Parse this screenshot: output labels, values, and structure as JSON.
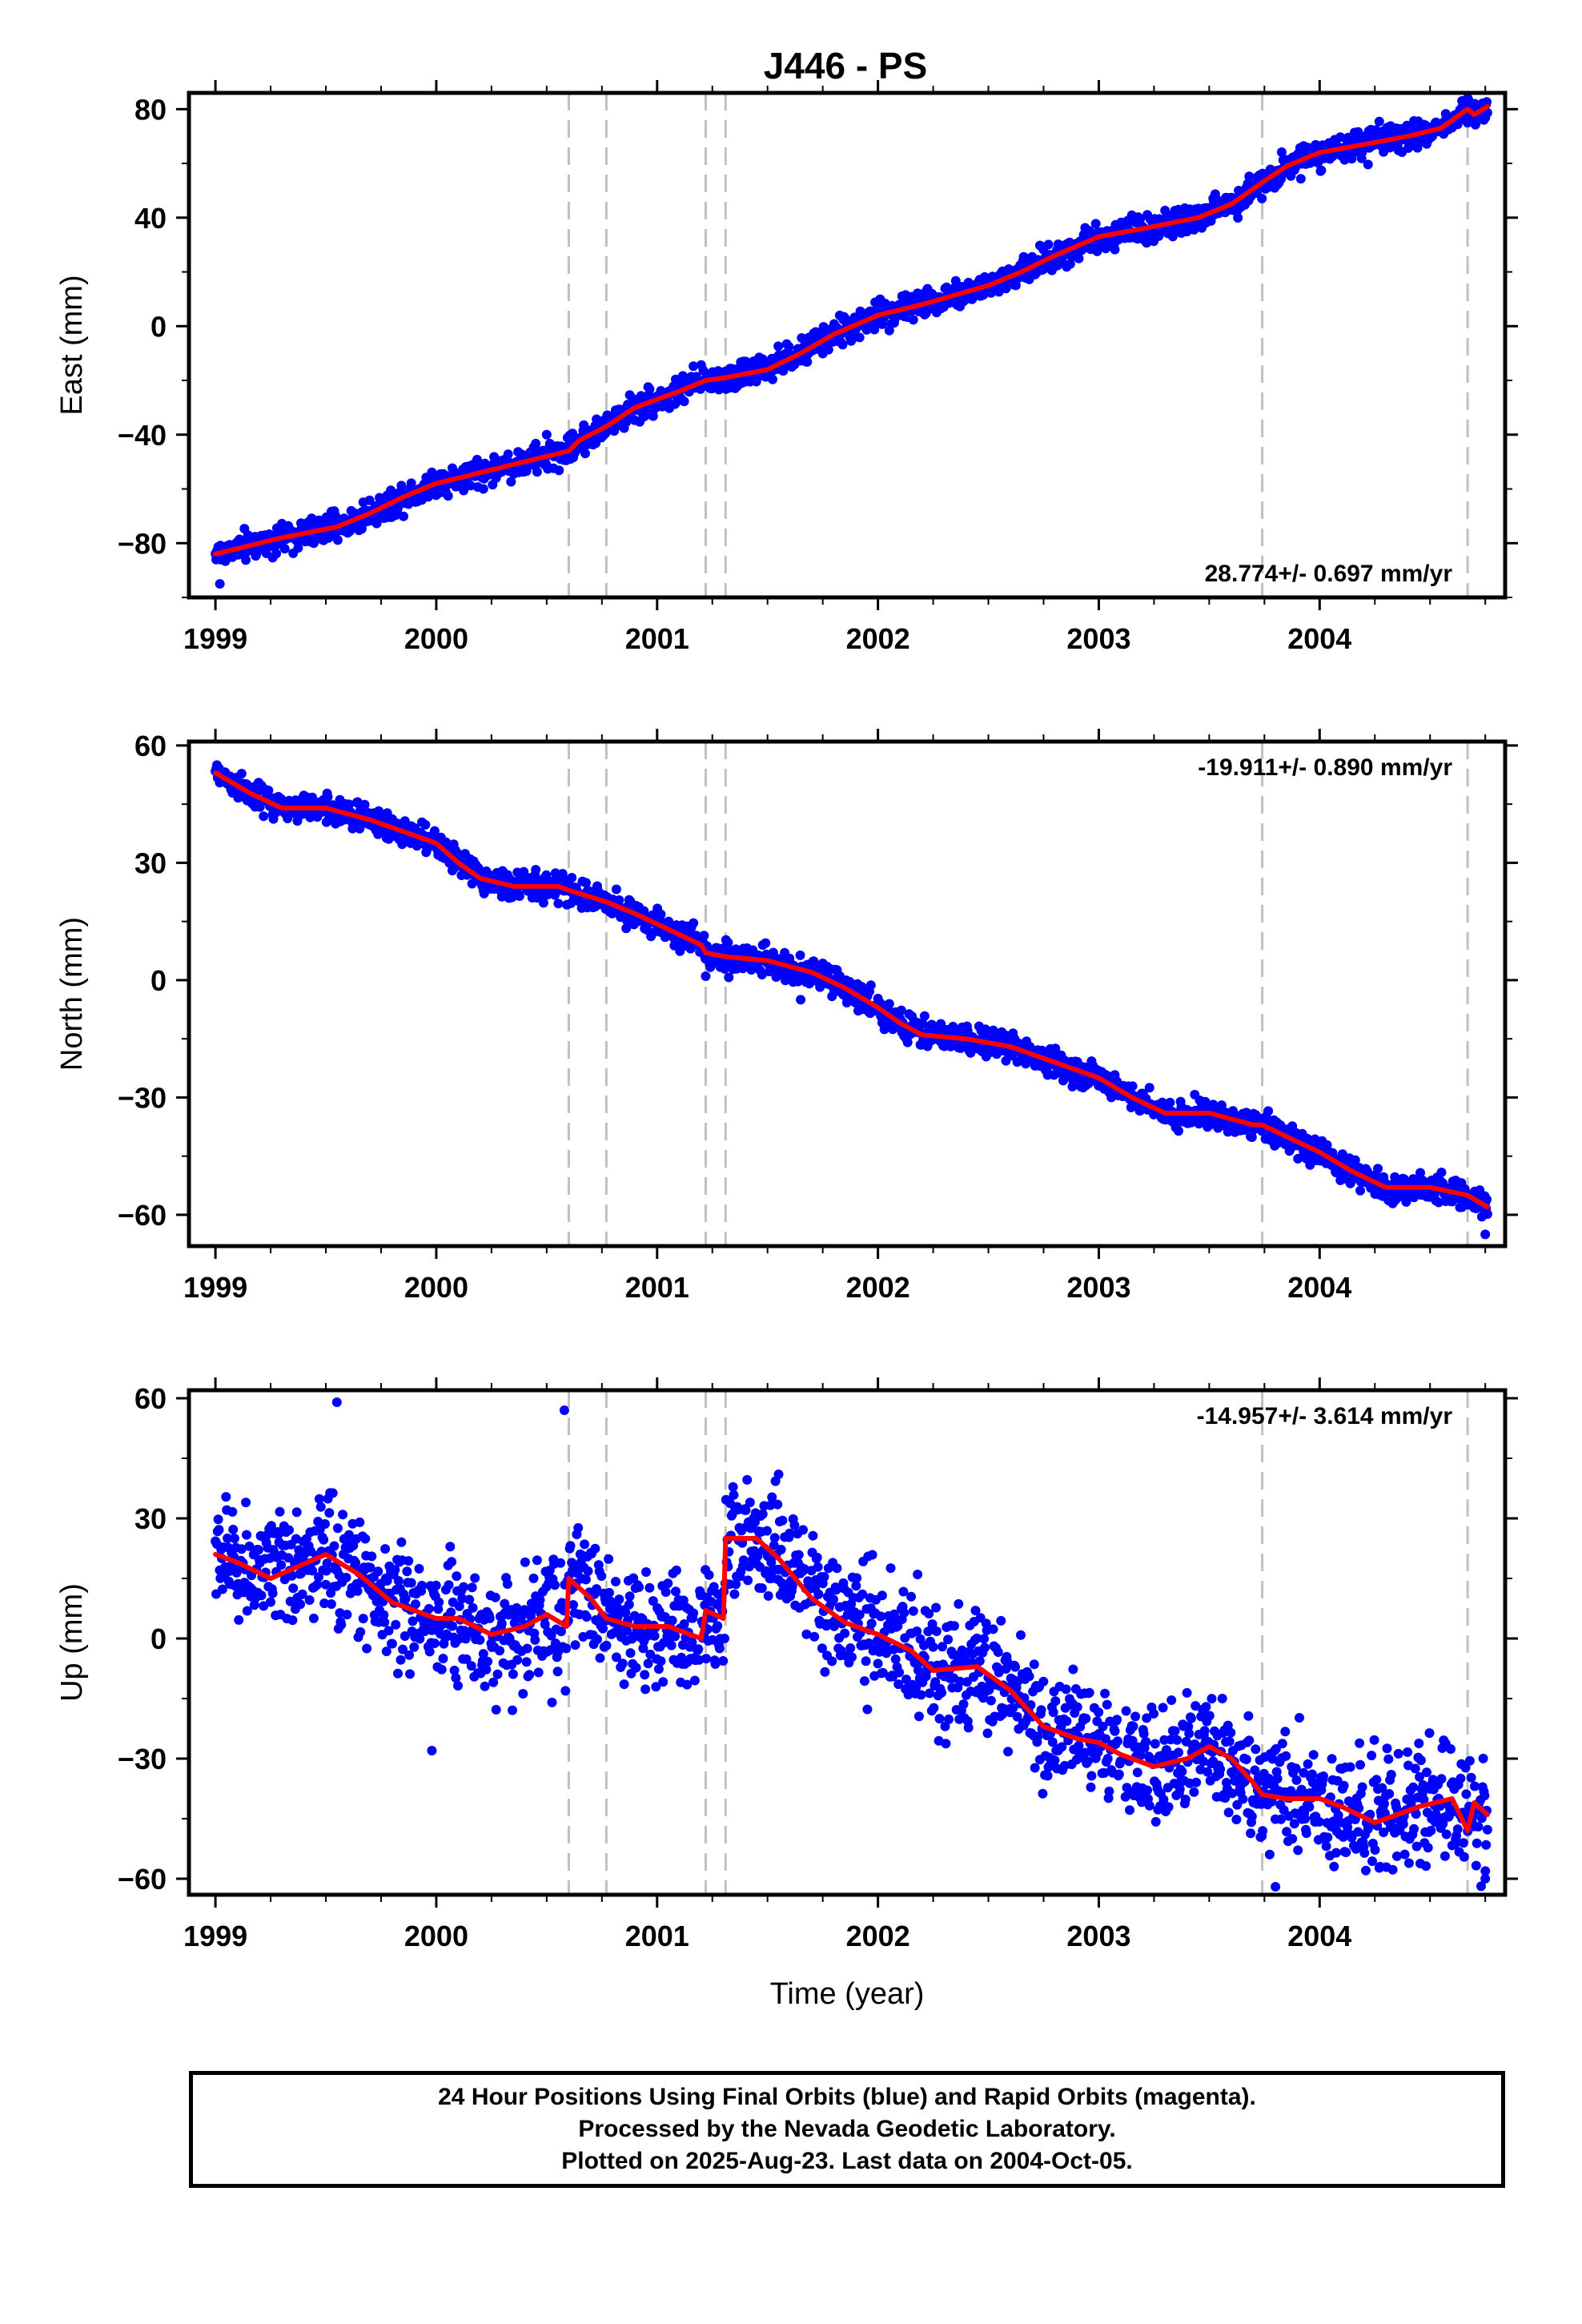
{
  "figure": {
    "title": "J446 - PS",
    "footer": [
      "24 Hour Positions Using Final Orbits (blue) and Rapid Orbits (magenta).",
      "Processed by the Nevada Geodetic Laboratory.",
      "Plotted on 2025-Aug-23. Last data on 2004-Oct-05."
    ]
  },
  "colors": {
    "points": "#0000ff",
    "fit": "#ff0000",
    "event_lines": "#c0c0c0",
    "axes": "#000000"
  },
  "chart_data": [
    {
      "type": "scatter",
      "title": "J446 - PS",
      "ylabel": "East (mm)",
      "xlabel": "",
      "xlim": [
        1998.88,
        2004.84
      ],
      "ylim": [
        -100,
        86
      ],
      "xticks": [
        1999,
        2000,
        2001,
        2002,
        2003,
        2004
      ],
      "yticks": [
        -80,
        -40,
        0,
        40,
        80
      ],
      "grid": false,
      "rate_label": "28.774+/- 0.697 mm/yr",
      "rate_position": "bottom-right",
      "event_lines_x": [
        2000.6,
        2000.77,
        2001.22,
        2001.31,
        2003.74,
        2004.67
      ],
      "data_range_x": [
        1999.0,
        2004.76
      ],
      "scatter_sigma": 2.6,
      "fit": {
        "x": [
          1999.0,
          1999.1,
          1999.3,
          1999.55,
          1999.7,
          1999.85,
          2000.0,
          2000.2,
          2000.4,
          2000.55,
          2000.6,
          2000.65,
          2000.77,
          2000.9,
          2001.1,
          2001.22,
          2001.31,
          2001.5,
          2001.65,
          2001.8,
          2002.0,
          2002.2,
          2002.5,
          2002.65,
          2002.8,
          2003.0,
          2003.2,
          2003.45,
          2003.6,
          2003.74,
          2003.85,
          2004.0,
          2004.2,
          2004.4,
          2004.55,
          2004.67,
          2004.7,
          2004.76
        ],
        "y": [
          -84,
          -82,
          -78,
          -74,
          -69,
          -63,
          -58,
          -54,
          -50,
          -47,
          -46,
          -42,
          -37,
          -30,
          -24,
          -20,
          -19,
          -16,
          -10,
          -3,
          4,
          8,
          15,
          20,
          26,
          33,
          36,
          40,
          45,
          53,
          59,
          64,
          67,
          70,
          73,
          80,
          78,
          81
        ]
      },
      "outliers": {
        "x": [
          1999.02,
          2000.5,
          2002.8,
          2004.67
        ],
        "y": [
          -95,
          -40,
          22,
          75
        ]
      }
    },
    {
      "type": "scatter",
      "title": "",
      "ylabel": "North (mm)",
      "xlabel": "",
      "xlim": [
        1998.88,
        2004.84
      ],
      "ylim": [
        -68,
        61
      ],
      "xticks": [
        1999,
        2000,
        2001,
        2002,
        2003,
        2004
      ],
      "yticks": [
        -60,
        -30,
        0,
        30,
        60
      ],
      "grid": false,
      "rate_label": "-19.911+/- 0.890 mm/yr",
      "rate_position": "top-right",
      "event_lines_x": [
        2000.6,
        2000.77,
        2001.22,
        2001.31,
        2003.74,
        2004.67
      ],
      "data_range_x": [
        1999.0,
        2004.76
      ],
      "scatter_sigma": 1.8,
      "fit": {
        "x": [
          1999.0,
          1999.15,
          1999.3,
          1999.5,
          1999.7,
          1999.85,
          2000.0,
          2000.1,
          2000.2,
          2000.35,
          2000.55,
          2000.6,
          2000.77,
          2000.9,
          2001.05,
          2001.2,
          2001.22,
          2001.31,
          2001.5,
          2001.7,
          2001.85,
          2002.0,
          2002.1,
          2002.2,
          2002.4,
          2002.6,
          2002.8,
          2003.0,
          2003.15,
          2003.3,
          2003.5,
          2003.7,
          2003.74,
          2003.85,
          2004.0,
          2004.15,
          2004.3,
          2004.5,
          2004.67,
          2004.76
        ],
        "y": [
          53,
          48,
          44,
          44,
          41,
          38,
          35,
          30,
          26,
          24,
          24,
          23,
          20,
          17,
          13,
          9,
          7,
          6,
          5,
          2,
          -2,
          -7,
          -11,
          -14,
          -15,
          -17,
          -21,
          -25,
          -30,
          -34,
          -34,
          -37,
          -37,
          -40,
          -44,
          -49,
          -53,
          -53,
          -55,
          -58
        ]
      },
      "outliers": {
        "x": [
          2001.22,
          2004.75,
          2001.65
        ],
        "y": [
          1,
          -65,
          -5
        ]
      }
    },
    {
      "type": "scatter",
      "title": "",
      "ylabel": "Up (mm)",
      "xlabel": "Time (year)",
      "xlim": [
        1998.88,
        2004.84
      ],
      "ylim": [
        -64,
        62
      ],
      "xticks": [
        1999,
        2000,
        2001,
        2002,
        2003,
        2004
      ],
      "yticks": [
        -60,
        -30,
        0,
        30,
        60
      ],
      "grid": false,
      "rate_label": "-14.957+/- 3.614 mm/yr",
      "rate_position": "top-right",
      "event_lines_x": [
        2000.6,
        2000.77,
        2001.22,
        2001.31,
        2003.74,
        2004.67
      ],
      "data_range_x": [
        1999.0,
        2004.76
      ],
      "scatter_sigma": 7.5,
      "data_gap_x": [
        2003.1,
        2003.1
      ],
      "offset_segment": {
        "x": [
          2003.1,
          2004.76
        ],
        "shift": -13
      },
      "fit": {
        "x": [
          1999.0,
          1999.1,
          1999.25,
          1999.5,
          1999.65,
          1999.8,
          2000.0,
          2000.1,
          2000.25,
          2000.4,
          2000.5,
          2000.59,
          2000.6,
          2000.7,
          2000.77,
          2000.9,
          2001.05,
          2001.2,
          2001.22,
          2001.3,
          2001.31,
          2001.45,
          2001.55,
          2001.7,
          2001.85,
          2002.0,
          2002.15,
          2002.25,
          2002.45,
          2002.6,
          2002.75,
          2002.9,
          2003.0,
          2003.1,
          2003.25,
          2003.4,
          2003.5,
          2003.6,
          2003.7,
          2003.74,
          2003.85,
          2004.0,
          2004.1,
          2004.25,
          2004.45,
          2004.6,
          2004.67,
          2004.7,
          2004.76
        ],
        "y": [
          21,
          19,
          15,
          21,
          16,
          9,
          5,
          5,
          1,
          3,
          6,
          3,
          15,
          10,
          5,
          3,
          3,
          0,
          7,
          5,
          25,
          25,
          20,
          10,
          4,
          1,
          -3,
          -8,
          -7,
          -13,
          -22,
          -25,
          -26,
          -29,
          -32,
          -30,
          -27,
          -30,
          -36,
          -39,
          -40,
          -40,
          -42,
          -46,
          -42,
          -40,
          -48,
          -41,
          -44
        ]
      },
      "outliers": {
        "x": [
          1999.55,
          2000.58,
          2001.55,
          1999.98,
          2003.8,
          2004.75
        ],
        "y": [
          59,
          57,
          41,
          -28,
          -62,
          -60
        ]
      }
    }
  ]
}
